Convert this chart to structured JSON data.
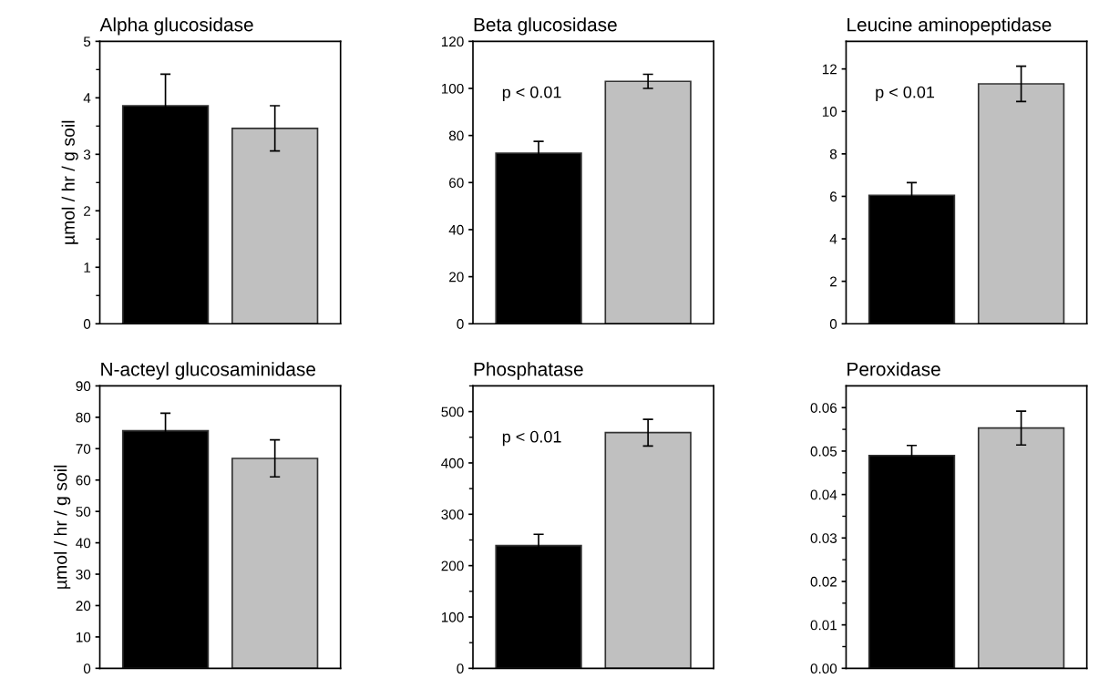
{
  "chart_data": [
    {
      "type": "bar",
      "title": "Alpha glucosidase",
      "ylabel": "µmol / hr / g soil",
      "categories": [
        null,
        null
      ],
      "values": [
        3.86,
        3.46
      ],
      "colors": [
        "#000000",
        "#c0c0c0"
      ],
      "errors": [
        0.56,
        0.4
      ],
      "ylim": [
        0,
        5
      ],
      "yticks": [
        0,
        {
          "value": 0.5,
          "label": null
        },
        1,
        {
          "value": 1.5,
          "label": null
        },
        2,
        {
          "value": 2.5,
          "label": null
        },
        3,
        {
          "value": 3.5,
          "label": null
        },
        4,
        {
          "value": 4.5,
          "label": null
        },
        5
      ],
      "grid": false,
      "legend": false
    },
    {
      "type": "bar",
      "title": "Beta glucosidase",
      "categories": [
        null,
        null
      ],
      "values": [
        72.5,
        103
      ],
      "colors": [
        "#000000",
        "#c0c0c0"
      ],
      "errors": [
        5,
        3
      ],
      "annotations": [
        "p < 0.01"
      ],
      "ylim": [
        0,
        120
      ],
      "yticks": [
        0,
        20,
        40,
        60,
        80,
        100,
        120
      ],
      "grid": false,
      "legend": false
    },
    {
      "type": "bar",
      "title": "Leucine aminopeptidase",
      "categories": [
        null,
        null
      ],
      "values": [
        6.05,
        11.3
      ],
      "colors": [
        "#000000",
        "#c0c0c0"
      ],
      "errors": [
        0.6,
        0.83
      ],
      "annotations": [
        "p < 0.01"
      ],
      "ylim": [
        0,
        13.3
      ],
      "yticks": [
        0,
        2,
        4,
        6,
        8,
        10,
        12
      ],
      "grid": false,
      "legend": false
    },
    {
      "type": "bar",
      "title": "N-acteyl glucosaminidase",
      "ylabel": "µmol / hr / g soil",
      "categories": [
        null,
        null
      ],
      "values": [
        75.7,
        66.9
      ],
      "colors": [
        "#000000",
        "#c0c0c0"
      ],
      "errors": [
        5.6,
        5.9
      ],
      "ylim": [
        0,
        90
      ],
      "yticks": [
        0,
        10,
        20,
        30,
        40,
        50,
        60,
        70,
        80,
        90
      ],
      "grid": false,
      "legend": false
    },
    {
      "type": "bar",
      "title": "Phosphatase",
      "categories": [
        null,
        null
      ],
      "values": [
        239,
        459
      ],
      "colors": [
        "#000000",
        "#c0c0c0"
      ],
      "errors": [
        22,
        26
      ],
      "annotations": [
        "p < 0.01"
      ],
      "ylim": [
        0,
        550
      ],
      "yticks": [
        0,
        {
          "value": 50,
          "label": null
        },
        100,
        {
          "value": 150,
          "label": null
        },
        200,
        {
          "value": 250,
          "label": null
        },
        300,
        {
          "value": 350,
          "label": null
        },
        400,
        {
          "value": 450,
          "label": null
        },
        500,
        {
          "value": 550,
          "label": null
        }
      ],
      "grid": false,
      "legend": false
    },
    {
      "type": "bar",
      "title": "Peroxidase",
      "categories": [
        null,
        null
      ],
      "values": [
        0.049,
        0.0553
      ],
      "colors": [
        "#000000",
        "#c0c0c0"
      ],
      "errors": [
        0.0023,
        0.0039
      ],
      "ylim": [
        0,
        0.065
      ],
      "yticks": [
        {
          "value": 0,
          "label": "0.00"
        },
        {
          "value": 0.005,
          "label": null
        },
        {
          "value": 0.01,
          "label": "0.01"
        },
        {
          "value": 0.015,
          "label": null
        },
        {
          "value": 0.02,
          "label": "0.02"
        },
        {
          "value": 0.025,
          "label": null
        },
        {
          "value": 0.03,
          "label": "0.03"
        },
        {
          "value": 0.035,
          "label": null
        },
        {
          "value": 0.04,
          "label": "0.04"
        },
        {
          "value": 0.045,
          "label": null
        },
        {
          "value": 0.05,
          "label": "0.05"
        },
        {
          "value": 0.055,
          "label": null
        },
        {
          "value": 0.06,
          "label": "0.06"
        }
      ],
      "grid": false,
      "legend": false
    }
  ]
}
